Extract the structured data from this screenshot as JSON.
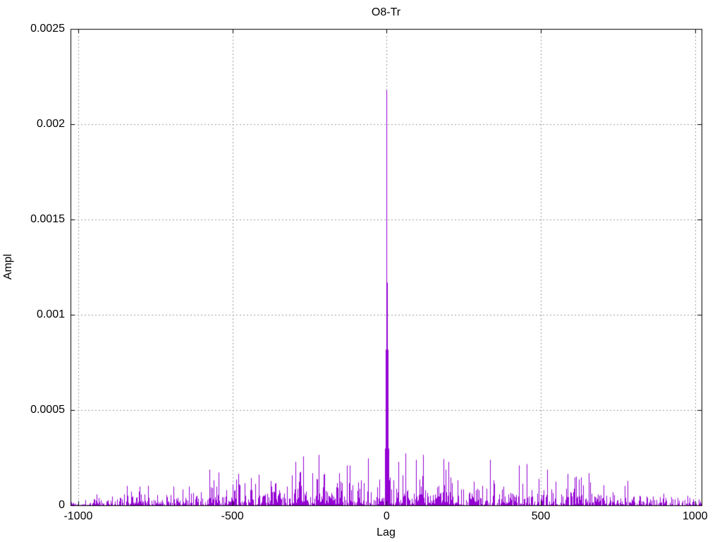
{
  "chart_data": {
    "type": "line",
    "style": "impulses",
    "title": "O8-Tr",
    "xlabel": "Lag",
    "ylabel": "Ampl",
    "xlim": [
      -1025,
      1021
    ],
    "ylim": [
      0,
      0.0025
    ],
    "x_ticks": [
      -1000,
      -500,
      0,
      500,
      1000
    ],
    "x_tick_labels": [
      "-1000",
      "-500",
      "0",
      "500",
      "1000"
    ],
    "y_ticks": [
      0,
      0.0005,
      0.001,
      0.0015,
      0.002,
      0.0025
    ],
    "y_tick_labels": [
      "0",
      "0.0005",
      "0.001",
      "0.0015",
      "0.002",
      "0.0025"
    ],
    "grid": true,
    "legend": "none",
    "line_color": "#9400D3",
    "axis_color": "#000000",
    "grid_color": "#9b9b9b",
    "background": "#ffffff",
    "peak": {
      "lag": 0,
      "value": 0.00218
    },
    "center_peaks": [
      [
        -5,
        0.0003
      ],
      [
        -4,
        0.00045
      ],
      [
        -3,
        0.00082
      ],
      [
        -2,
        0.001
      ],
      [
        -1,
        0.00117
      ],
      [
        0,
        0.00218
      ],
      [
        1,
        0.00117
      ],
      [
        2,
        0.001
      ],
      [
        3,
        0.00082
      ],
      [
        4,
        0.00045
      ],
      [
        5,
        0.0003
      ]
    ],
    "feature_spikes": [
      [
        -575,
        0.00019
      ],
      [
        -482,
        0.000165
      ],
      [
        -271,
        0.00026
      ],
      [
        -220,
        0.000265
      ],
      [
        -130,
        0.00021
      ],
      [
        -60,
        0.00025
      ],
      [
        60,
        0.000275
      ],
      [
        95,
        0.00024
      ],
      [
        185,
        0.000245
      ],
      [
        200,
        0.00023
      ],
      [
        335,
        0.00024
      ],
      [
        430,
        0.00021
      ],
      [
        520,
        0.00019
      ],
      [
        610,
        0.00015
      ],
      [
        780,
        0.00013
      ],
      [
        -800,
        0.0001
      ]
    ],
    "noise_envelope_mean": [
      [
        -1024,
        1.2e-05
      ],
      [
        -900,
        2e-05
      ],
      [
        -800,
        2.6e-05
      ],
      [
        -700,
        3e-05
      ],
      [
        -600,
        3.6e-05
      ],
      [
        -500,
        4e-05
      ],
      [
        -400,
        4.6e-05
      ],
      [
        -300,
        5e-05
      ],
      [
        -200,
        5.6e-05
      ],
      [
        -100,
        5.2e-05
      ],
      [
        -20,
        6e-05
      ],
      [
        20,
        6e-05
      ],
      [
        100,
        5.8e-05
      ],
      [
        200,
        5.6e-05
      ],
      [
        300,
        5.2e-05
      ],
      [
        400,
        5e-05
      ],
      [
        500,
        4.6e-05
      ],
      [
        600,
        4e-05
      ],
      [
        700,
        3.4e-05
      ],
      [
        800,
        2.8e-05
      ],
      [
        900,
        2e-05
      ],
      [
        1020,
        1.4e-05
      ]
    ],
    "noise_step": 2,
    "render_seed": 1337
  }
}
